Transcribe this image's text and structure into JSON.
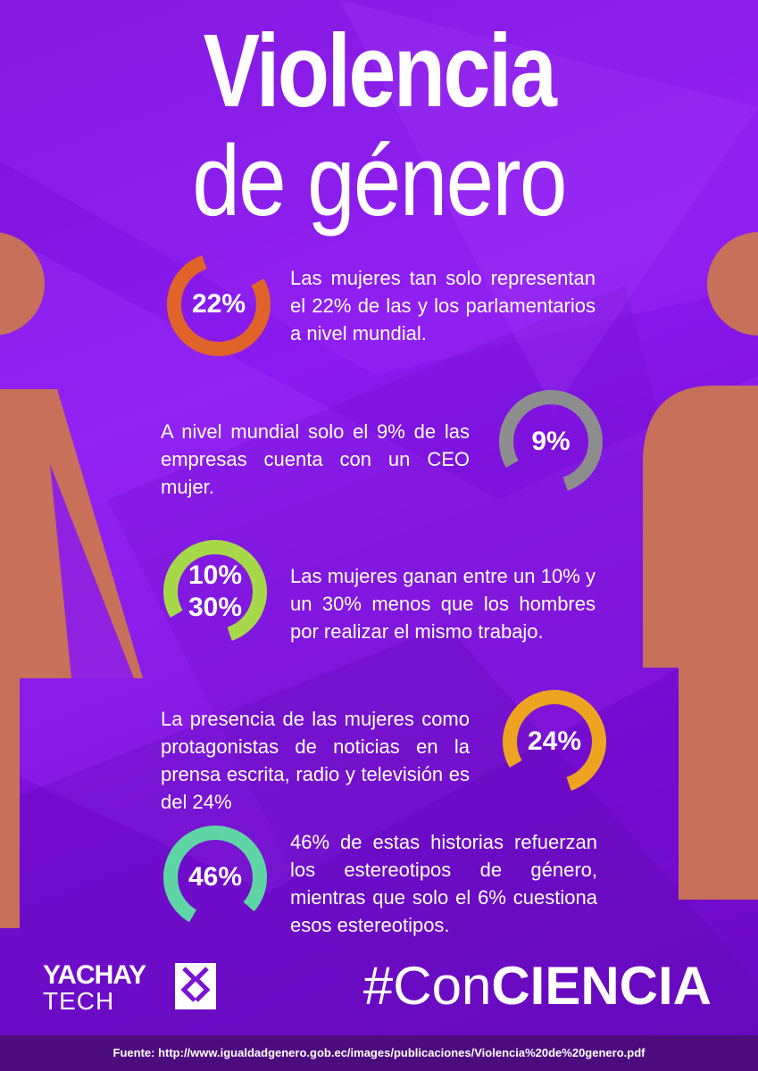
{
  "title": {
    "line1": "Violencia",
    "line2": "de género"
  },
  "stats": [
    {
      "ring_label": "22%",
      "ring_color": "#e0632a",
      "value_percent": 22,
      "text": "Las mujeres tan solo representan el 22% de las y los parlamentarios a nivel mundial."
    },
    {
      "ring_label": "9%",
      "ring_color": "#8d8d8d",
      "value_percent": 9,
      "text": "A nivel mundial solo el 9% de las empresas cuenta con un CEO mujer."
    },
    {
      "ring_label_line1": "10%",
      "ring_label_line2": "30%",
      "ring_color": "#a6d84a",
      "value_percent_min": 10,
      "value_percent_max": 30,
      "text": "Las mujeres ganan entre un 10% y un 30% menos que los hombres por realizar el mismo trabajo."
    },
    {
      "ring_label": "24%",
      "ring_color": "#eea321",
      "value_percent": 24,
      "text": "La presencia de las mujeres como protagonistas de noticias en la prensa escrita, radio y televisión es del 24%"
    },
    {
      "ring_label": "46%",
      "ring_color": "#5fd5a6",
      "value_percent": 46,
      "text": "46%  de estas historias refuerzan los estereotipos de género, mientras que solo el 6% cuestiona esos estereotipos."
    }
  ],
  "logo": {
    "line1": "YACHAY",
    "line2": "TECH"
  },
  "hashtag": {
    "prefix": "#Con",
    "bold": "CIENCIA"
  },
  "source": "Fuente: http://www.igualdadgenero.gob.ec/images/publicaciones/Violencia%20de%20genero.pdf",
  "colors": {
    "background": "#8a1bf0",
    "figure": "#c8705a",
    "footer": "#4d0c7e"
  }
}
